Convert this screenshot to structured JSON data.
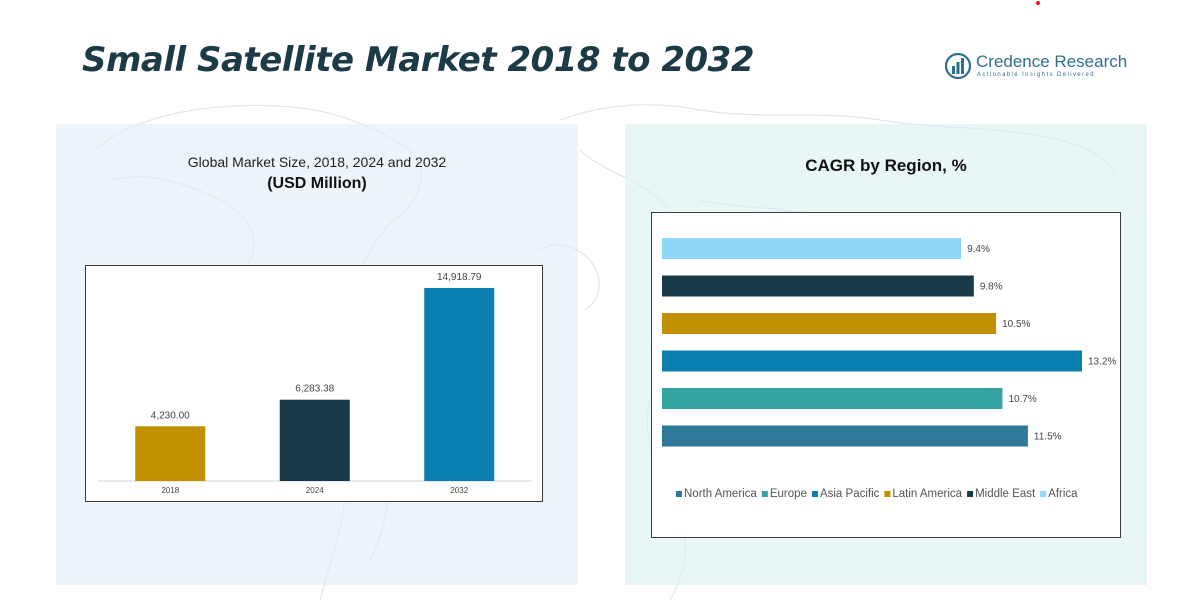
{
  "header": {
    "title": "Small Satellite Market 2018 to 2032",
    "brand_name": "Credence Research",
    "brand_tagline": "Actionable Insights Delivered"
  },
  "left_panel": {
    "subtitle": "Global Market Size, 2018, 2024 and 2032",
    "unit": "(USD Million)"
  },
  "right_panel": {
    "title": "CAGR by Region, %"
  },
  "chart_data": [
    {
      "type": "bar",
      "title": "Global Market Size, 2018, 2024 and 2032",
      "subtitle": "(USD Million)",
      "categories": [
        "2018",
        "2024",
        "2032"
      ],
      "values": [
        4230.0,
        6283.38,
        14918.79
      ],
      "value_labels": [
        "4,230.00",
        "6,283.38",
        "14,918.79"
      ],
      "colors": [
        "#c09000",
        "#1a3a4a",
        "#0a7fb0"
      ],
      "ylim": [
        0,
        16000
      ],
      "grid": false,
      "legend": "none"
    },
    {
      "type": "bar",
      "orientation": "horizontal",
      "title": "CAGR by Region, %",
      "categories": [
        "Africa",
        "Middle East",
        "Latin America",
        "Asia Pacific",
        "Europe",
        "North America"
      ],
      "values": [
        9.4,
        9.8,
        10.5,
        13.2,
        10.7,
        11.5
      ],
      "value_labels": [
        "9.4%",
        "9.8%",
        "10.5%",
        "13.2%",
        "10.7%",
        "11.5%"
      ],
      "colors": [
        "#8ed8f5",
        "#1a3a4a",
        "#c09000",
        "#0a7fb0",
        "#34a3a3",
        "#2e7899"
      ],
      "xlim": [
        0,
        13.2
      ],
      "grid": false,
      "legend": "bottom",
      "legend_entries": [
        {
          "label": "North America",
          "color": "#2e7899"
        },
        {
          "label": "Europe",
          "color": "#34a3a3"
        },
        {
          "label": "Asia Pacific",
          "color": "#0a7fb0"
        },
        {
          "label": "Latin America",
          "color": "#c09000"
        },
        {
          "label": "Middle East",
          "color": "#1a3a4a"
        },
        {
          "label": "Africa",
          "color": "#8ed8f5"
        }
      ]
    }
  ]
}
